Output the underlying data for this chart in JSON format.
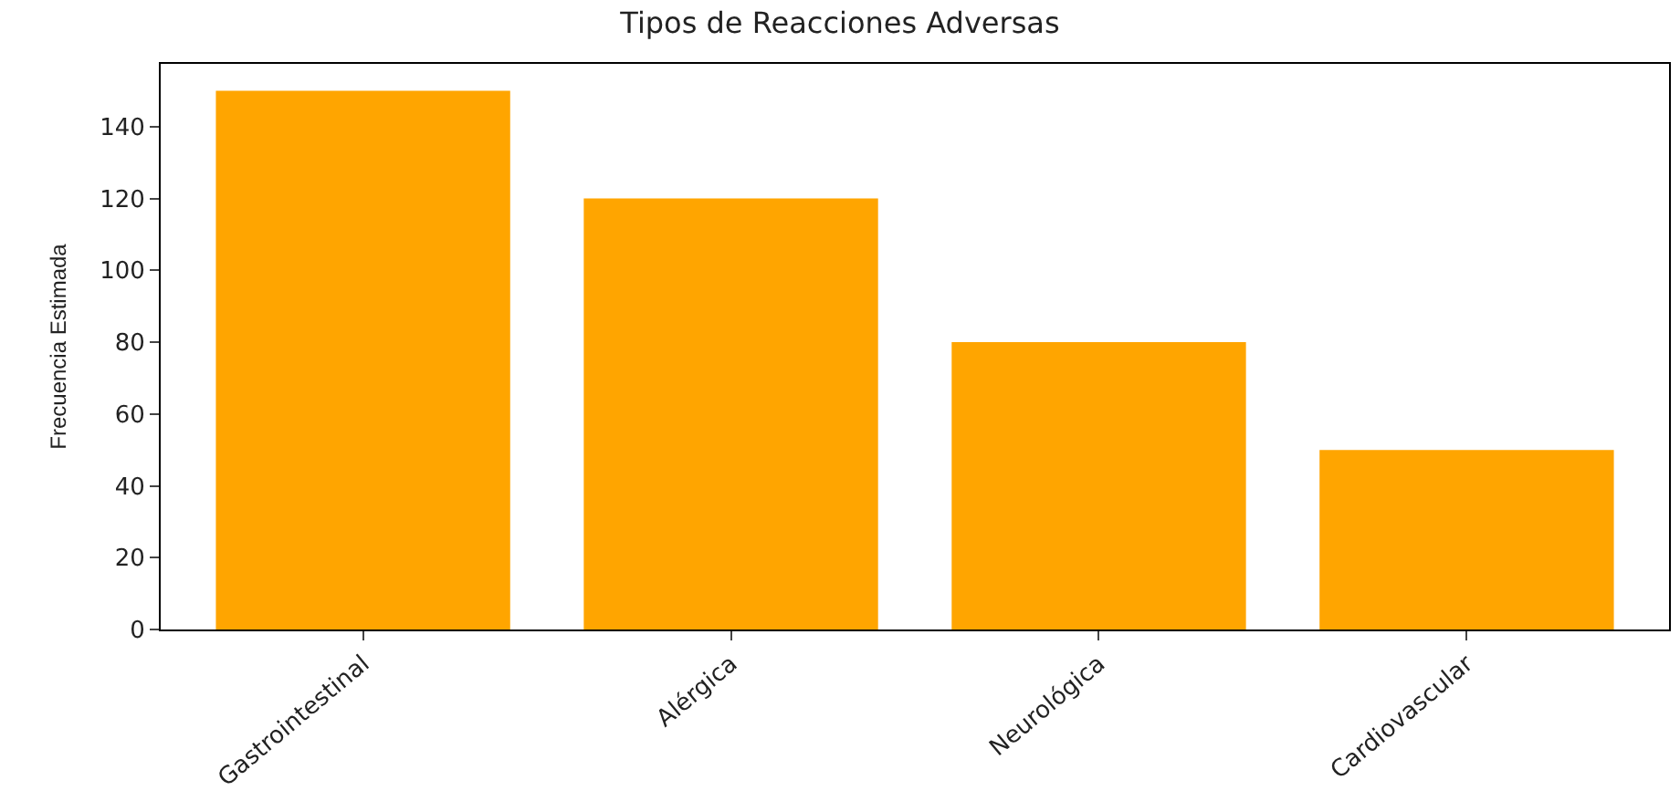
{
  "chart_data": {
    "type": "bar",
    "title": "Tipos de Reacciones Adversas",
    "ylabel": "Frecuencia Estimada",
    "categories": [
      "Gastrointestinal",
      "Alérgica",
      "Neurológica",
      "Cardiovascular"
    ],
    "values": [
      150,
      120,
      80,
      50
    ],
    "color": "#ffa500",
    "ylim": [
      0,
      157.5
    ],
    "yticks": [
      0,
      20,
      40,
      60,
      80,
      100,
      120,
      140
    ]
  }
}
